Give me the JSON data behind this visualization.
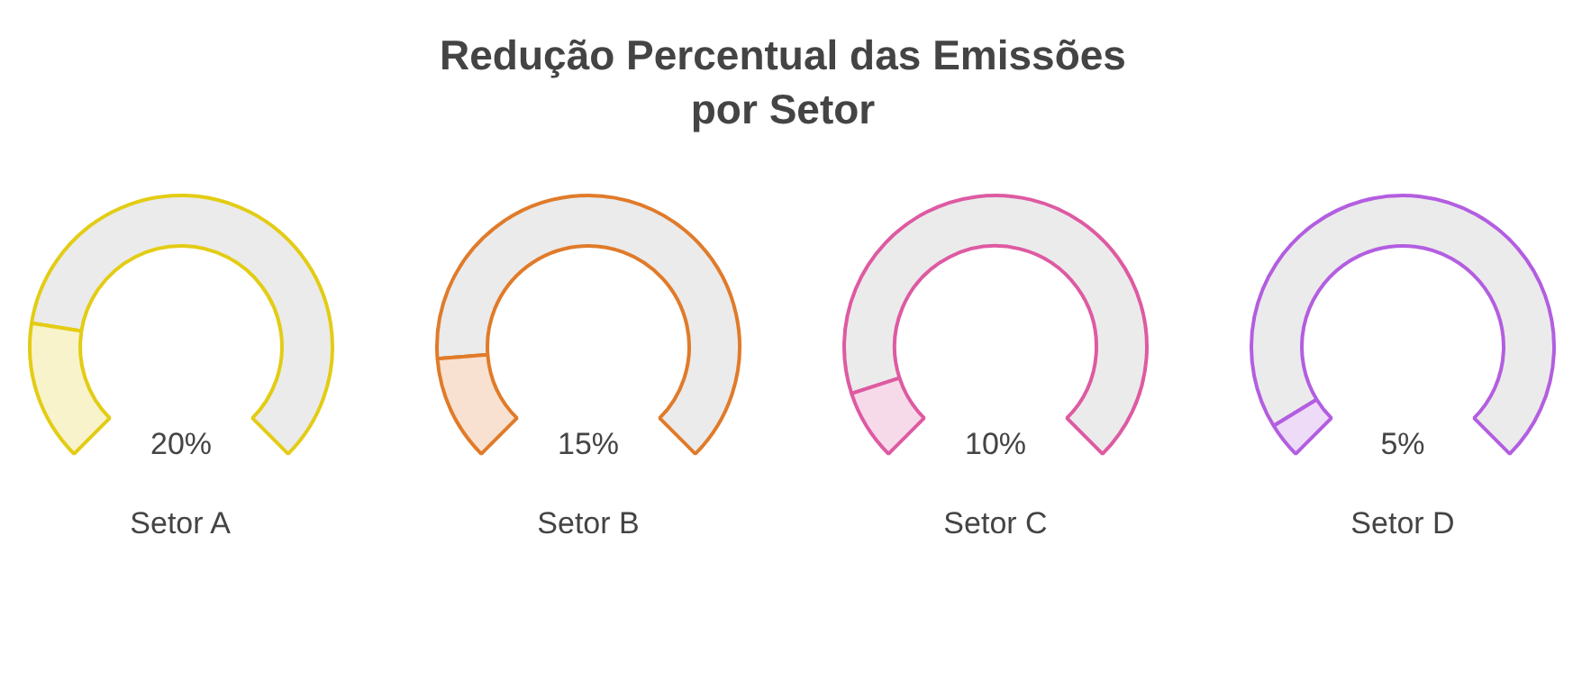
{
  "chart_data": {
    "type": "other",
    "title": "Redução Percentual das Emissões por Setor",
    "categories": [
      "Setor A",
      "Setor B",
      "Setor C",
      "Setor D"
    ],
    "values": [
      20,
      15,
      10,
      5
    ],
    "value_labels": [
      "20%",
      "15%",
      "10%",
      "5%"
    ],
    "colors": [
      "#e3cc14",
      "#e07b2a",
      "#de5aa2",
      "#b35ee0"
    ]
  }
}
